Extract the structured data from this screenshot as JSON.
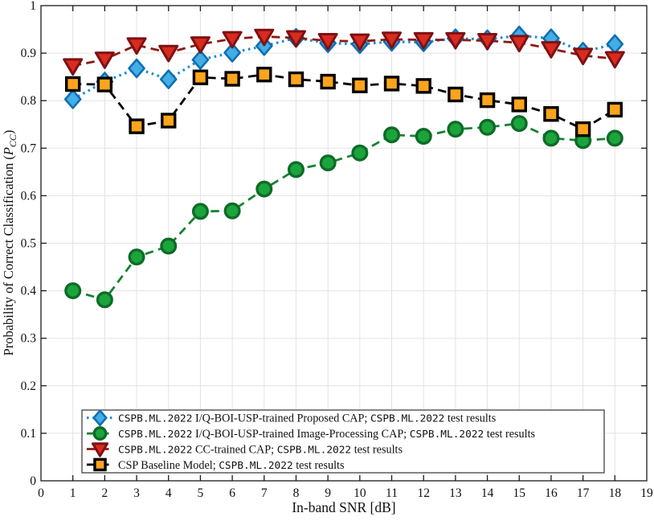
{
  "chart_data": {
    "type": "line",
    "title": "",
    "xlabel": "In-band SNR [dB]",
    "ylabel": "Probability of Correct Classification (P_CC)",
    "ylabel_parts": {
      "prefix": "Probability of Correct Classification (",
      "variable": "P",
      "subscript": "CC",
      "suffix": ")"
    },
    "xlim": [
      0,
      19
    ],
    "ylim": [
      0,
      1
    ],
    "xticks": [
      0,
      1,
      2,
      3,
      4,
      5,
      6,
      7,
      8,
      9,
      10,
      11,
      12,
      13,
      14,
      15,
      16,
      17,
      18,
      19
    ],
    "yticks": [
      0,
      0.1,
      0.2,
      0.3,
      0.4,
      0.5,
      0.6,
      0.7,
      0.8,
      0.9,
      1
    ],
    "ytick_labels": [
      "0",
      "0.1",
      "0.2",
      "0.3",
      "0.4",
      "0.5",
      "0.6",
      "0.7",
      "0.8",
      "0.9",
      "1"
    ],
    "grid": true,
    "legend_position": "inside-bottom-left",
    "colors": {
      "grid": "#e3e3e3",
      "axis": "#1a1a1a",
      "text": "#111111",
      "background": "#ffffff"
    },
    "x": [
      1,
      2,
      3,
      4,
      5,
      6,
      7,
      8,
      9,
      10,
      11,
      12,
      13,
      14,
      15,
      16,
      17,
      18
    ],
    "series": [
      {
        "name": "CSPB.ML.2022 I/Q-BOI-USP-trained Proposed CAP; CSPB.ML.2022 test results",
        "label_segments": [
          {
            "t": "CSPB.ML.2022",
            "mono": true
          },
          {
            "t": " I/Q-BOI-USP-trained Proposed CAP; ",
            "mono": false
          },
          {
            "t": "CSPB.ML.2022",
            "mono": true
          },
          {
            "t": " test results",
            "mono": false
          }
        ],
        "marker": "diamond",
        "line_style": "dotted",
        "line_color": "#1d8bd3",
        "marker_fill": "#44aee4",
        "marker_edge": "#0f6fb5",
        "values": [
          0.803,
          0.84,
          0.868,
          0.845,
          0.886,
          0.901,
          0.915,
          0.932,
          0.921,
          0.919,
          0.924,
          0.923,
          0.931,
          0.929,
          0.937,
          0.931,
          0.903,
          0.919
        ]
      },
      {
        "name": "CSPB.ML.2022 I/Q-BOI-USP-trained Image-Processing CAP; CSPB.ML.2022 test results",
        "label_segments": [
          {
            "t": "CSPB.ML.2022",
            "mono": true
          },
          {
            "t": " I/Q-BOI-USP-trained Image-Processing CAP; ",
            "mono": false
          },
          {
            "t": "CSPB.ML.2022",
            "mono": true
          },
          {
            "t": " test results",
            "mono": false
          }
        ],
        "marker": "circle",
        "line_style": "dashed",
        "line_color": "#188132",
        "marker_fill": "#1ca43c",
        "marker_edge": "#0e6b28",
        "values": [
          0.4,
          0.381,
          0.471,
          0.494,
          0.567,
          0.568,
          0.614,
          0.655,
          0.669,
          0.69,
          0.728,
          0.725,
          0.74,
          0.744,
          0.752,
          0.721,
          0.716,
          0.721
        ]
      },
      {
        "name": "CSPB.ML.2022 CC-trained CAP; CSPB.ML.2022 test results",
        "label_segments": [
          {
            "t": "CSPB.ML.2022",
            "mono": true
          },
          {
            "t": " CC-trained CAP; ",
            "mono": false
          },
          {
            "t": "CSPB.ML.2022",
            "mono": true
          },
          {
            "t": " test results",
            "mono": false
          }
        ],
        "marker": "triangle-down",
        "line_style": "dashed",
        "line_color": "#8c1a12",
        "marker_fill": "#d92b1f",
        "marker_edge": "#7e1113",
        "values": [
          0.873,
          0.887,
          0.917,
          0.901,
          0.919,
          0.93,
          0.935,
          0.932,
          0.926,
          0.925,
          0.929,
          0.928,
          0.928,
          0.926,
          0.922,
          0.909,
          0.895,
          0.888
        ]
      },
      {
        "name": "CSP Baseline Model; CSPB.ML.2022 test results",
        "label_segments": [
          {
            "t": "CSP Baseline Model; ",
            "mono": false
          },
          {
            "t": "CSPB.ML.2022",
            "mono": true
          },
          {
            "t": " test results",
            "mono": false
          }
        ],
        "marker": "square",
        "line_style": "dashed",
        "line_color": "#000000",
        "marker_fill": "#ffa41c",
        "marker_edge": "#000000",
        "values": [
          0.835,
          0.834,
          0.746,
          0.758,
          0.849,
          0.846,
          0.855,
          0.845,
          0.84,
          0.832,
          0.836,
          0.831,
          0.813,
          0.801,
          0.792,
          0.772,
          0.74,
          0.781
        ]
      }
    ]
  }
}
